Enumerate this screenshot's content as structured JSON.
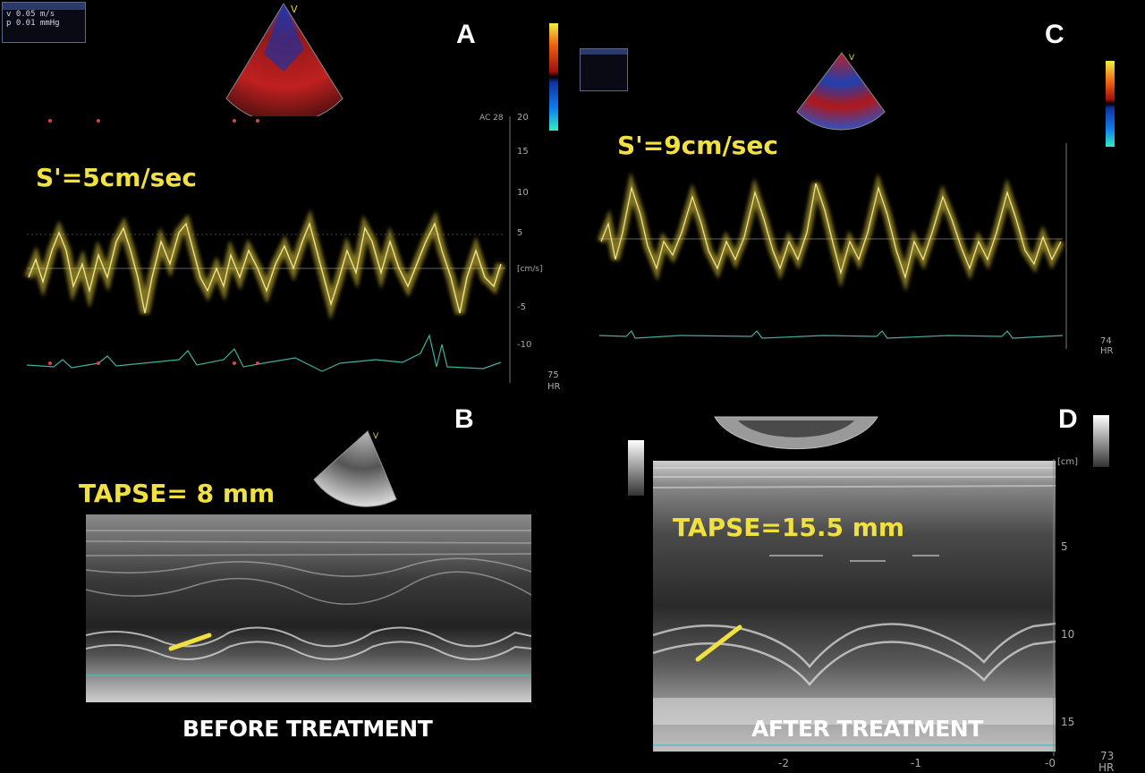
{
  "panels": {
    "a": {
      "letter": "A",
      "measurement": "S'=5cm/sec",
      "info": {
        "v": "v   0.05 m/s",
        "p": "p  0.01 mmHg"
      },
      "scale_label": "AC 28",
      "unit_label": "[cm/s]",
      "hr_value": "75",
      "hr_label": "HR",
      "y_ticks": [
        "20",
        "15",
        "10",
        "5",
        "-5",
        "-10"
      ]
    },
    "b": {
      "letter": "B",
      "measurement": "TAPSE= 8 mm",
      "caption": "BEFORE TREATMENT"
    },
    "c": {
      "letter": "C",
      "measurement": "S'=9cm/sec",
      "hr_value": "74",
      "hr_label": "HR"
    },
    "d": {
      "letter": "D",
      "measurement": "TAPSE=15.5 mm",
      "caption": "AFTER TREATMENT",
      "unit_label": "[cm]",
      "depth_ticks": [
        "5",
        "10",
        "15"
      ],
      "time_ticks": [
        "-2",
        "-1",
        "-0"
      ],
      "hr_value": "73",
      "hr_label": "HR"
    }
  },
  "colors": {
    "doppler_trace": "#e8d040",
    "measurement_text": "#f0e040",
    "ecg_trace": "#40b0a0"
  }
}
